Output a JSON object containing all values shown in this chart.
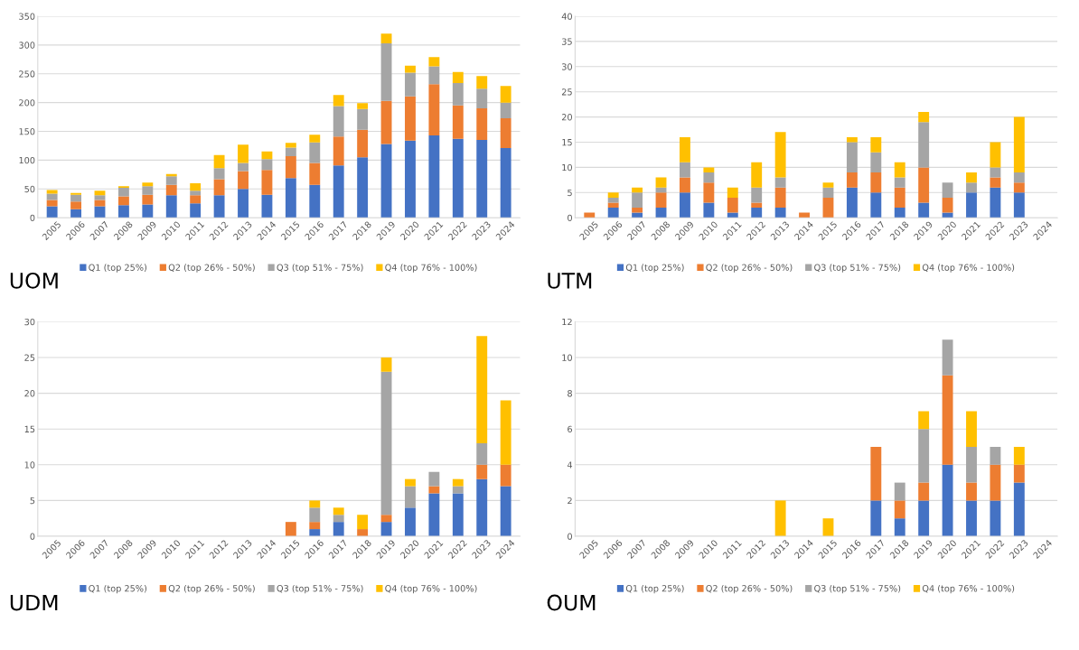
{
  "chart_data": [
    {
      "type": "bar",
      "title": "UOM",
      "stacked": true,
      "grid": "y",
      "legend": "bottom",
      "ylim": [
        0,
        350
      ],
      "yticks": [
        0,
        50,
        100,
        150,
        200,
        250,
        300,
        350
      ],
      "categories": [
        "2005",
        "2006",
        "2007",
        "2008",
        "2009",
        "2010",
        "2011",
        "2012",
        "2013",
        "2014",
        "2015",
        "2016",
        "2017",
        "2018",
        "2019",
        "2020",
        "2021",
        "2022",
        "2023",
        "2024"
      ],
      "series": [
        {
          "name": "Q1 (top 25%)",
          "color": "#4472c4",
          "values": [
            20,
            15,
            20,
            22,
            23,
            39,
            25,
            39,
            50,
            40,
            69,
            57,
            91,
            105,
            128,
            134,
            143,
            137,
            135,
            121
          ]
        },
        {
          "name": "Q2 (top 26% - 50%)",
          "color": "#ed7d31",
          "values": [
            11,
            13,
            11,
            15,
            17,
            18,
            14,
            28,
            31,
            43,
            38,
            38,
            50,
            48,
            75,
            77,
            89,
            58,
            55,
            52
          ]
        },
        {
          "name": "Q3 (top 51% - 75%)",
          "color": "#a5a5a5",
          "values": [
            11,
            12,
            8,
            15,
            15,
            15,
            8,
            19,
            14,
            19,
            15,
            36,
            53,
            36,
            100,
            41,
            31,
            39,
            34,
            27
          ]
        },
        {
          "name": "Q4 (top 76% - 100%)",
          "color": "#ffc000",
          "values": [
            6,
            3,
            8,
            3,
            6,
            4,
            13,
            23,
            32,
            13,
            8,
            13,
            19,
            10,
            17,
            12,
            16,
            19,
            22,
            29
          ]
        }
      ]
    },
    {
      "type": "bar",
      "title": "UTM",
      "stacked": true,
      "grid": "y",
      "legend": "bottom",
      "ylim": [
        0,
        40
      ],
      "yticks": [
        0,
        5,
        10,
        15,
        20,
        25,
        30,
        35,
        40
      ],
      "categories": [
        "2005",
        "2006",
        "2007",
        "2008",
        "2009",
        "2010",
        "2011",
        "2012",
        "2013",
        "2014",
        "2015",
        "2016",
        "2017",
        "2018",
        "2019",
        "2020",
        "2021",
        "2022",
        "2023",
        "2024"
      ],
      "series": [
        {
          "name": "Q1 (top 25%)",
          "color": "#4472c4",
          "values": [
            0,
            2,
            1,
            2,
            5,
            3,
            1,
            2,
            2,
            0,
            0,
            6,
            5,
            2,
            3,
            1,
            5,
            6,
            5,
            null
          ]
        },
        {
          "name": "Q2 (top 26% - 50%)",
          "color": "#ed7d31",
          "values": [
            1,
            1,
            1,
            3,
            3,
            4,
            3,
            1,
            4,
            1,
            4,
            3,
            4,
            4,
            7,
            3,
            0,
            2,
            2,
            null
          ]
        },
        {
          "name": "Q3 (top 51% - 75%)",
          "color": "#a5a5a5",
          "values": [
            0,
            1,
            3,
            1,
            3,
            2,
            0,
            3,
            2,
            0,
            2,
            6,
            4,
            2,
            9,
            3,
            2,
            2,
            2,
            null
          ]
        },
        {
          "name": "Q4 (top 76% - 100%)",
          "color": "#ffc000",
          "values": [
            0,
            1,
            1,
            2,
            5,
            1,
            2,
            5,
            9,
            0,
            1,
            1,
            3,
            3,
            2,
            0,
            2,
            5,
            11,
            null
          ]
        }
      ]
    },
    {
      "type": "bar",
      "title": "UDM",
      "stacked": true,
      "grid": "y",
      "legend": "bottom",
      "ylim": [
        0,
        30
      ],
      "yticks": [
        0,
        5,
        10,
        15,
        20,
        25,
        30
      ],
      "categories": [
        "2005",
        "2006",
        "2007",
        "2008",
        "2009",
        "2010",
        "2011",
        "2012",
        "2013",
        "2014",
        "2015",
        "2016",
        "2017",
        "2018",
        "2019",
        "2020",
        "2021",
        "2022",
        "2023",
        "2024"
      ],
      "series": [
        {
          "name": "Q1 (top 25%)",
          "color": "#4472c4",
          "values": [
            0,
            0,
            0,
            0,
            0,
            0,
            0,
            0,
            0,
            0,
            0,
            1,
            2,
            0,
            2,
            4,
            6,
            6,
            8,
            7
          ]
        },
        {
          "name": "Q2 (top 26% - 50%)",
          "color": "#ed7d31",
          "values": [
            0,
            0,
            0,
            0,
            0,
            0,
            0,
            0,
            0,
            0,
            2,
            1,
            0,
            1,
            1,
            0,
            1,
            0,
            2,
            3
          ]
        },
        {
          "name": "Q3 (top 51% - 75%)",
          "color": "#a5a5a5",
          "values": [
            0,
            0,
            0,
            0,
            0,
            0,
            0,
            0,
            0,
            0,
            0,
            2,
            1,
            0,
            20,
            3,
            2,
            1,
            3,
            0
          ]
        },
        {
          "name": "Q4 (top 76% - 100%)",
          "color": "#ffc000",
          "values": [
            0,
            0,
            0,
            0,
            0,
            0,
            0,
            0,
            0,
            0,
            0,
            1,
            1,
            2,
            2,
            1,
            0,
            1,
            15,
            9
          ]
        }
      ]
    },
    {
      "type": "bar",
      "title": "OUM",
      "stacked": true,
      "grid": "y",
      "legend": "bottom",
      "ylim": [
        0,
        12
      ],
      "yticks": [
        0,
        2,
        4,
        6,
        8,
        10,
        12
      ],
      "categories": [
        "2005",
        "2006",
        "2007",
        "2008",
        "2009",
        "2010",
        "2011",
        "2012",
        "2013",
        "2014",
        "2015",
        "2016",
        "2017",
        "2018",
        "2019",
        "2020",
        "2021",
        "2022",
        "2023",
        "2024"
      ],
      "series": [
        {
          "name": "Q1 (top 25%)",
          "color": "#4472c4",
          "values": [
            0,
            0,
            0,
            0,
            0,
            0,
            0,
            0,
            0,
            0,
            0,
            0,
            2,
            1,
            2,
            4,
            2,
            2,
            3,
            null
          ]
        },
        {
          "name": "Q2 (top 26% - 50%)",
          "color": "#ed7d31",
          "values": [
            0,
            0,
            0,
            0,
            0,
            0,
            0,
            0,
            0,
            0,
            0,
            0,
            3,
            1,
            1,
            5,
            1,
            2,
            1,
            null
          ]
        },
        {
          "name": "Q3 (top 51% - 75%)",
          "color": "#a5a5a5",
          "values": [
            0,
            0,
            0,
            0,
            0,
            0,
            0,
            0,
            0,
            0,
            0,
            0,
            0,
            1,
            3,
            2,
            2,
            1,
            0,
            null
          ]
        },
        {
          "name": "Q4 (top 76% - 100%)",
          "color": "#ffc000",
          "values": [
            0,
            0,
            0,
            0,
            0,
            0,
            0,
            0,
            2,
            0,
            1,
            0,
            0,
            0,
            1,
            0,
            2,
            0,
            1,
            null
          ]
        }
      ]
    }
  ]
}
